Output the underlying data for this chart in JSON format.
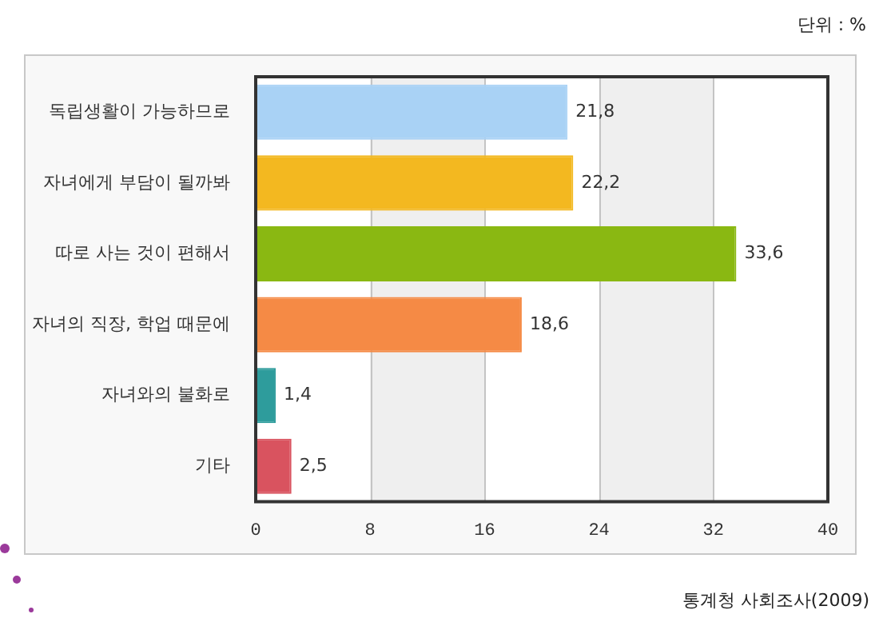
{
  "chart_data": {
    "type": "bar",
    "orientation": "horizontal",
    "categories": [
      "독립생활이 가능하므로",
      "자녀에게 부담이 될까봐",
      "따로 사는 것이 편해서",
      "자녀의 직장, 학업 때문에",
      "자녀와의 불화로",
      "기타"
    ],
    "values": [
      21.8,
      22.2,
      33.6,
      18.6,
      1.4,
      2.5
    ],
    "value_labels": [
      "21,8",
      "22,2",
      "33,6",
      "18,6",
      "1,4",
      "2,5"
    ],
    "colors": [
      "#a9d2f5",
      "#f3b820",
      "#8ab812",
      "#f58a45",
      "#2e9c9c",
      "#d9535f"
    ],
    "xlim": [
      0,
      40
    ],
    "xticks": [
      0,
      8,
      16,
      24,
      32,
      40
    ],
    "grid": "x",
    "annotations": [
      "단위 : %",
      "통계청 사회조사(2009)"
    ]
  }
}
